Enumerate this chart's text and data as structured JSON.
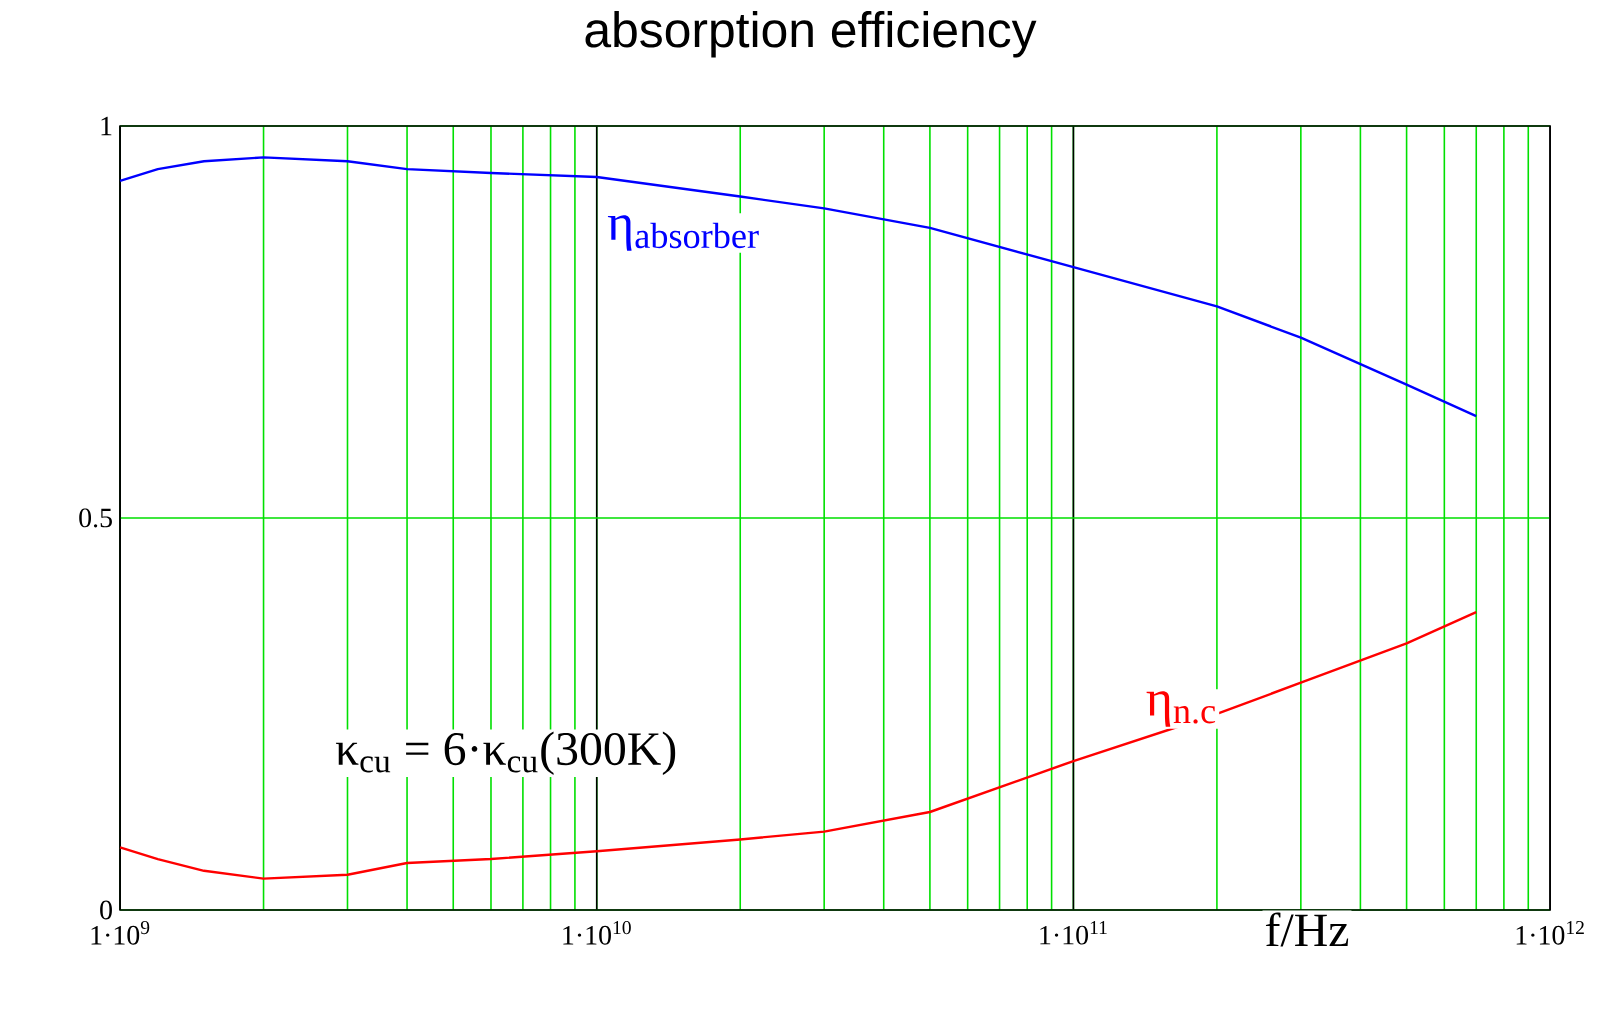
{
  "chart_data": {
    "type": "line",
    "title": "absorption efficiency",
    "xlabel": "f/Hz",
    "log": "x",
    "grid": true,
    "marker": "none",
    "line_style": "solid",
    "xlim": [
      1000000000.0,
      1000000000000.0
    ],
    "ylim": [
      0,
      1
    ],
    "xticks": [
      {
        "value": 1000000000.0,
        "label": "1·10$^{9}$"
      },
      {
        "value": 10000000000.0,
        "label": "1·10$^{10}$"
      },
      {
        "value": 100000000000.0,
        "label": "1·10$^{11}$"
      },
      {
        "value": 1000000000000.0,
        "label": "1·10$^{12}$"
      }
    ],
    "yticks": [
      0,
      0.5,
      1
    ],
    "x": [
      1000000000.0,
      1200000000.0,
      1500000000.0,
      2000000000.0,
      3000000000.0,
      4000000000.0,
      6000000000.0,
      10000000000.0,
      20000000000.0,
      30000000000.0,
      50000000000.0,
      100000000000.0,
      200000000000.0,
      300000000000.0,
      500000000000.0,
      700000000000.0
    ],
    "series": [
      {
        "name": "η$_{absorber}$",
        "color": "#0000ff",
        "values": [
          0.93,
          0.945,
          0.955,
          0.96,
          0.955,
          0.945,
          0.94,
          0.935,
          0.91,
          0.895,
          0.87,
          0.82,
          0.77,
          0.73,
          0.67,
          0.63
        ]
      },
      {
        "name": "η$_{n.c}$",
        "color": "#ff0000",
        "values": [
          0.08,
          0.065,
          0.05,
          0.04,
          0.045,
          0.06,
          0.065,
          0.075,
          0.09,
          0.1,
          0.125,
          0.19,
          0.25,
          0.29,
          0.34,
          0.38
        ]
      }
    ],
    "annotations": [
      "κ$_{cu}$ = 6·κ$_{cu}$(300K)"
    ]
  }
}
